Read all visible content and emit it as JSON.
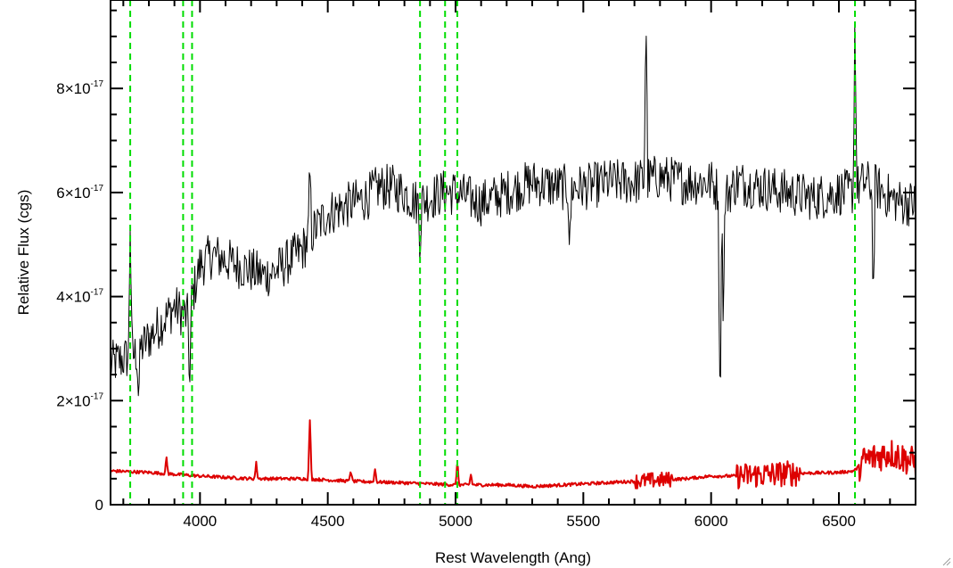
{
  "chart_data": {
    "type": "line",
    "title": "",
    "xlabel": "Rest Wavelength (Ang)",
    "ylabel": "Relative Flux (cgs)",
    "xlim": [
      3650,
      6800
    ],
    "ylim": [
      0,
      9.7
    ],
    "y_multiplier_label": "×10",
    "y_exponent": "-17",
    "x_ticks": [
      {
        "value": 4000,
        "label": "4000"
      },
      {
        "value": 4500,
        "label": "4500"
      },
      {
        "value": 5000,
        "label": "5000"
      },
      {
        "value": 5500,
        "label": "5500"
      },
      {
        "value": 6000,
        "label": "6000"
      },
      {
        "value": 6500,
        "label": "6500"
      }
    ],
    "y_ticks": [
      {
        "value": 0,
        "mantissa": "0",
        "exponent": ""
      },
      {
        "value": 2,
        "mantissa": "2",
        "exponent": "-17"
      },
      {
        "value": 4,
        "mantissa": "4",
        "exponent": "-17"
      },
      {
        "value": 6,
        "mantissa": "6",
        "exponent": "-17"
      },
      {
        "value": 8,
        "mantissa": "8",
        "exponent": "-17"
      }
    ],
    "grid": false,
    "legend": "none",
    "vertical_lines": {
      "color": "#00dd00",
      "style": "dashed",
      "x": [
        3727,
        3934,
        3969,
        4861,
        4959,
        5007,
        6563
      ]
    },
    "series": [
      {
        "color": "#000000",
        "style": "noisy",
        "noise": 0.45,
        "x": [
          3650,
          3700,
          3750,
          3800,
          3850,
          3900,
          3950,
          4000,
          4050,
          4100,
          4150,
          4200,
          4250,
          4300,
          4350,
          4400,
          4450,
          4500,
          4550,
          4600,
          4650,
          4700,
          4750,
          4800,
          4850,
          4900,
          4950,
          5000,
          5050,
          5100,
          5200,
          5300,
          5400,
          5500,
          5600,
          5700,
          5800,
          5900,
          6000,
          6050,
          6100,
          6200,
          6300,
          6400,
          6500,
          6550,
          6600,
          6650,
          6700,
          6750,
          6800
        ],
        "y": [
          2.7,
          2.8,
          2.9,
          3.2,
          3.5,
          3.8,
          3.6,
          4.6,
          4.8,
          4.7,
          4.6,
          4.5,
          4.4,
          4.5,
          4.7,
          4.9,
          5.3,
          5.6,
          5.7,
          5.8,
          5.9,
          6.1,
          6.1,
          6.0,
          5.8,
          5.9,
          6.0,
          6.0,
          5.9,
          5.8,
          6.0,
          6.2,
          6.1,
          6.1,
          6.2,
          6.2,
          6.3,
          6.2,
          6.2,
          5.9,
          6.2,
          6.1,
          6.0,
          5.9,
          6.0,
          6.0,
          6.2,
          6.1,
          5.9,
          5.8,
          5.8
        ],
        "features": [
          {
            "x": 3727,
            "dy": 2.7
          },
          {
            "x": 3760,
            "dy": -0.9
          },
          {
            "x": 3960,
            "dy": -1.6
          },
          {
            "x": 4430,
            "dy": 1.3
          },
          {
            "x": 4861,
            "dy": -0.8
          },
          {
            "x": 5447,
            "dy": -1.3
          },
          {
            "x": 5745,
            "dy": 3.3
          },
          {
            "x": 6035,
            "dy": -4.5
          },
          {
            "x": 6048,
            "dy": -2.4
          },
          {
            "x": 6563,
            "dy": 3.6
          },
          {
            "x": 6635,
            "dy": -2.2
          }
        ]
      },
      {
        "color": "#dd0000",
        "style": "noisy-segments",
        "noise": 0.03,
        "x": [
          3650,
          3800,
          4000,
          4200,
          4400,
          4600,
          4800,
          5000,
          5200,
          5300,
          5500,
          5700,
          5900,
          6000,
          6100,
          6300,
          6500,
          6560,
          6600,
          6700,
          6800
        ],
        "y": [
          0.65,
          0.62,
          0.55,
          0.5,
          0.5,
          0.45,
          0.42,
          0.38,
          0.38,
          0.35,
          0.4,
          0.45,
          0.5,
          0.55,
          0.55,
          0.6,
          0.62,
          0.65,
          0.85,
          1.0,
          0.8
        ],
        "noisy_ranges": [
          [
            5700,
            5850,
            0.15
          ],
          [
            6100,
            6350,
            0.25
          ],
          [
            6580,
            6800,
            0.3
          ]
        ],
        "features": [
          {
            "x": 3869,
            "dy": 0.3
          },
          {
            "x": 4220,
            "dy": 0.3
          },
          {
            "x": 4430,
            "dy": 1.15
          },
          {
            "x": 4590,
            "dy": 0.22
          },
          {
            "x": 4685,
            "dy": 0.25
          },
          {
            "x": 5007,
            "dy": 0.45
          },
          {
            "x": 5060,
            "dy": 0.2
          }
        ]
      }
    ]
  }
}
